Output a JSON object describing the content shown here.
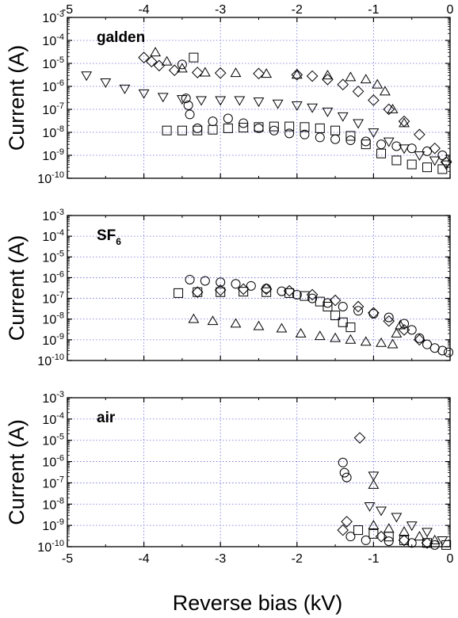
{
  "chart_data": {
    "type": "scatter",
    "xlabel": "Reverse bias (kV)",
    "x_ticks": [
      "-5",
      "-4",
      "-3",
      "-2",
      "-1",
      "0"
    ],
    "xlim": [
      -5,
      0
    ],
    "y_scale": "log",
    "ylim": [
      1e-10,
      0.001
    ],
    "y_tick_exponents": [
      "-3",
      "-4",
      "-5",
      "-6",
      "-7",
      "-8",
      "-9",
      "-10"
    ],
    "grid": "dotted",
    "markers": [
      "square",
      "circle",
      "triangle-up",
      "triangle-down",
      "diamond"
    ],
    "panels": [
      {
        "label": "galden",
        "label_sub": "",
        "ylabel": "Current (A)",
        "top_axis_ticks": true,
        "series": [
          {
            "marker": "triangle-down",
            "points": [
              [
                -4.75,
                3e-06
              ],
              [
                -4.5,
                1.5e-06
              ],
              [
                -4.25,
                8e-07
              ],
              [
                -4.0,
                5e-07
              ],
              [
                -3.75,
                3.5e-07
              ],
              [
                -3.5,
                2.8e-07
              ],
              [
                -3.25,
                2.5e-07
              ],
              [
                -3.0,
                2.5e-07
              ],
              [
                -2.75,
                2.5e-07
              ],
              [
                -2.5,
                2.2e-07
              ],
              [
                -2.25,
                1.8e-07
              ],
              [
                -2.0,
                1.5e-07
              ],
              [
                -1.8,
                1.2e-07
              ],
              [
                -1.6,
                8e-08
              ],
              [
                -1.4,
                5e-08
              ],
              [
                -1.2,
                2.5e-08
              ],
              [
                -1.0,
                1e-08
              ],
              [
                -0.8,
                4e-09
              ],
              [
                -0.6,
                2e-09
              ],
              [
                -0.4,
                1e-09
              ],
              [
                -0.2,
                6e-10
              ],
              [
                -0.05,
                4e-10
              ]
            ]
          },
          {
            "marker": "diamond",
            "points": [
              [
                -4.0,
                1.8e-05
              ],
              [
                -3.9,
                1.2e-05
              ],
              [
                -3.8,
                8e-06
              ],
              [
                -3.6,
                5e-06
              ],
              [
                -3.3,
                4e-06
              ],
              [
                -3.0,
                3.8e-06
              ],
              [
                -2.5,
                3.6e-06
              ],
              [
                -2.0,
                3.2e-06
              ],
              [
                -1.8,
                2.8e-06
              ],
              [
                -1.6,
                2e-06
              ],
              [
                -1.4,
                1.2e-06
              ],
              [
                -1.2,
                6e-07
              ],
              [
                -1.0,
                2.5e-07
              ],
              [
                -0.8,
                1e-07
              ],
              [
                -0.6,
                3e-08
              ],
              [
                -0.4,
                8e-09
              ],
              [
                -0.2,
                2e-09
              ],
              [
                -0.05,
                5e-10
              ]
            ]
          },
          {
            "marker": "triangle-up",
            "points": [
              [
                -3.85,
                3e-05
              ],
              [
                -3.7,
                1.2e-05
              ],
              [
                -3.5,
                6e-06
              ],
              [
                -3.2,
                4e-06
              ],
              [
                -2.8,
                3.8e-06
              ],
              [
                -2.4,
                3.5e-06
              ],
              [
                -2.0,
                3.2e-06
              ],
              [
                -1.6,
                3e-06
              ],
              [
                -1.3,
                2.5e-06
              ],
              [
                -1.1,
                2e-06
              ],
              [
                -0.95,
                1.2e-06
              ],
              [
                -0.85,
                6e-07
              ],
              [
                -0.75,
                1e-07
              ],
              [
                -0.6,
                2.5e-08
              ]
            ]
          },
          {
            "marker": "circle",
            "points": [
              [
                -3.5,
                9e-06
              ],
              [
                -3.45,
                3e-07
              ],
              [
                -3.42,
                1.5e-07
              ],
              [
                -3.4,
                6e-08
              ],
              [
                -3.3,
                1.5e-08
              ],
              [
                -3.1,
                3e-08
              ],
              [
                -2.9,
                4e-08
              ],
              [
                -2.7,
                2.5e-08
              ],
              [
                -2.5,
                1.5e-08
              ],
              [
                -2.3,
                1.2e-08
              ],
              [
                -2.1,
                9e-09
              ],
              [
                -1.9,
                8e-09
              ],
              [
                -1.7,
                6e-09
              ],
              [
                -1.5,
                5e-09
              ],
              [
                -1.3,
                4.5e-09
              ],
              [
                -1.1,
                4e-09
              ],
              [
                -0.9,
                3e-09
              ],
              [
                -0.7,
                2.5e-09
              ],
              [
                -0.5,
                2e-09
              ],
              [
                -0.3,
                1.5e-09
              ],
              [
                -0.1,
                1e-09
              ]
            ]
          },
          {
            "marker": "square",
            "points": [
              [
                -3.35,
                1.8e-05
              ],
              [
                -3.7,
                1.2e-08
              ],
              [
                -3.5,
                1.2e-08
              ],
              [
                -3.3,
                1.2e-08
              ],
              [
                -3.1,
                1.3e-08
              ],
              [
                -2.9,
                1.5e-08
              ],
              [
                -2.7,
                1.6e-08
              ],
              [
                -2.5,
                1.7e-08
              ],
              [
                -2.3,
                1.8e-08
              ],
              [
                -2.1,
                1.8e-08
              ],
              [
                -1.9,
                1.7e-08
              ],
              [
                -1.7,
                1.5e-08
              ],
              [
                -1.5,
                1.2e-08
              ],
              [
                -1.3,
                7e-09
              ],
              [
                -1.1,
                3e-09
              ],
              [
                -0.9,
                1.2e-09
              ],
              [
                -0.7,
                6e-10
              ],
              [
                -0.5,
                4e-10
              ],
              [
                -0.3,
                3e-10
              ],
              [
                -0.1,
                2.5e-10
              ]
            ]
          }
        ]
      },
      {
        "label": "SF",
        "label_sub": "6",
        "ylabel": "Current (A)",
        "top_axis_ticks": false,
        "series": [
          {
            "marker": "circle",
            "points": [
              [
                -3.4,
                8e-07
              ],
              [
                -3.2,
                7e-07
              ],
              [
                -3.0,
                6e-07
              ],
              [
                -2.8,
                5e-07
              ],
              [
                -2.6,
                4e-07
              ],
              [
                -2.4,
                3e-07
              ],
              [
                -2.2,
                2.2e-07
              ],
              [
                -2.0,
                1.5e-07
              ],
              [
                -1.8,
                1e-07
              ],
              [
                -1.6,
                6e-08
              ],
              [
                -1.4,
                4e-08
              ],
              [
                -1.2,
                2.5e-08
              ],
              [
                -1.0,
                1.8e-08
              ],
              [
                -0.8,
                1.2e-08
              ],
              [
                -0.6,
                6e-09
              ],
              [
                -0.5,
                3e-09
              ],
              [
                -0.4,
                1.2e-09
              ],
              [
                -0.3,
                6e-10
              ],
              [
                -0.2,
                4e-10
              ],
              [
                -0.1,
                3e-10
              ],
              [
                -0.02,
                2.5e-10
              ]
            ]
          },
          {
            "marker": "square",
            "points": [
              [
                -3.55,
                1.8e-07
              ],
              [
                -3.3,
                2e-07
              ],
              [
                -3.0,
                2e-07
              ],
              [
                -2.7,
                2.1e-07
              ],
              [
                -2.4,
                2e-07
              ],
              [
                -2.1,
                1.8e-07
              ],
              [
                -1.9,
                1.3e-07
              ],
              [
                -1.7,
                7e-08
              ],
              [
                -1.6,
                4e-08
              ],
              [
                -1.5,
                1.5e-08
              ],
              [
                -1.4,
                7e-09
              ],
              [
                -1.3,
                4e-09
              ]
            ]
          },
          {
            "marker": "diamond",
            "points": [
              [
                -3.3,
                2e-07
              ],
              [
                -3.0,
                2.5e-07
              ],
              [
                -2.7,
                2.8e-07
              ],
              [
                -2.4,
                2.8e-07
              ],
              [
                -2.1,
                2.3e-07
              ],
              [
                -1.8,
                1.5e-07
              ],
              [
                -1.5,
                8e-08
              ],
              [
                -1.2,
                4e-08
              ],
              [
                -1.0,
                2e-08
              ],
              [
                -0.8,
                8e-09
              ],
              [
                -0.6,
                3e-09
              ],
              [
                -0.4,
                1e-09
              ]
            ]
          },
          {
            "marker": "triangle-up",
            "points": [
              [
                -3.35,
                1e-08
              ],
              [
                -3.1,
                8e-09
              ],
              [
                -2.8,
                6e-09
              ],
              [
                -2.5,
                4.5e-09
              ],
              [
                -2.2,
                3.5e-09
              ],
              [
                -1.95,
                2e-09
              ],
              [
                -1.7,
                1.5e-09
              ],
              [
                -1.5,
                1.2e-09
              ],
              [
                -1.3,
                1e-09
              ],
              [
                -1.1,
                8e-10
              ],
              [
                -0.9,
                7e-10
              ],
              [
                -0.75,
                6e-10
              ],
              [
                -0.7,
                2e-09
              ],
              [
                -0.65,
                5e-09
              ]
            ]
          }
        ]
      },
      {
        "label": "air",
        "label_sub": "",
        "ylabel": "Current (A)",
        "top_axis_ticks": false,
        "series": [
          {
            "marker": "diamond",
            "points": [
              [
                -1.18,
                1.3e-05
              ],
              [
                -1.35,
                1.5e-09
              ],
              [
                -1.4,
                6e-10
              ],
              [
                -0.9,
                3e-10
              ],
              [
                -0.6,
                2e-10
              ],
              [
                -0.3,
                1.5e-10
              ]
            ]
          },
          {
            "marker": "circle",
            "points": [
              [
                -1.4,
                9e-07
              ],
              [
                -1.38,
                3e-07
              ],
              [
                -1.35,
                1.8e-07
              ],
              [
                -1.3,
                3e-10
              ],
              [
                -1.1,
                2e-10
              ],
              [
                -0.8,
                1.8e-10
              ],
              [
                -0.5,
                1.5e-10
              ],
              [
                -0.2,
                1.2e-10
              ]
            ]
          },
          {
            "marker": "triangle-down",
            "points": [
              [
                -1.0,
                2.2e-07
              ],
              [
                -1.05,
                8e-09
              ],
              [
                -0.9,
                5e-09
              ],
              [
                -0.7,
                2.5e-09
              ],
              [
                -0.5,
                1e-09
              ],
              [
                -0.3,
                5e-10
              ],
              [
                -0.1,
                2e-10
              ]
            ]
          },
          {
            "marker": "triangle-up",
            "points": [
              [
                -1.0,
                8e-08
              ],
              [
                -1.0,
                1e-09
              ],
              [
                -0.8,
                7e-10
              ],
              [
                -0.6,
                5e-10
              ],
              [
                -0.4,
                3e-10
              ],
              [
                -0.2,
                2e-10
              ]
            ]
          },
          {
            "marker": "square",
            "points": [
              [
                -1.2,
                6e-10
              ],
              [
                -1.0,
                4e-10
              ],
              [
                -0.8,
                3e-10
              ],
              [
                -0.6,
                2e-10
              ],
              [
                -0.3,
                1.5e-10
              ],
              [
                -0.05,
                1.2e-10
              ]
            ]
          }
        ]
      }
    ]
  }
}
